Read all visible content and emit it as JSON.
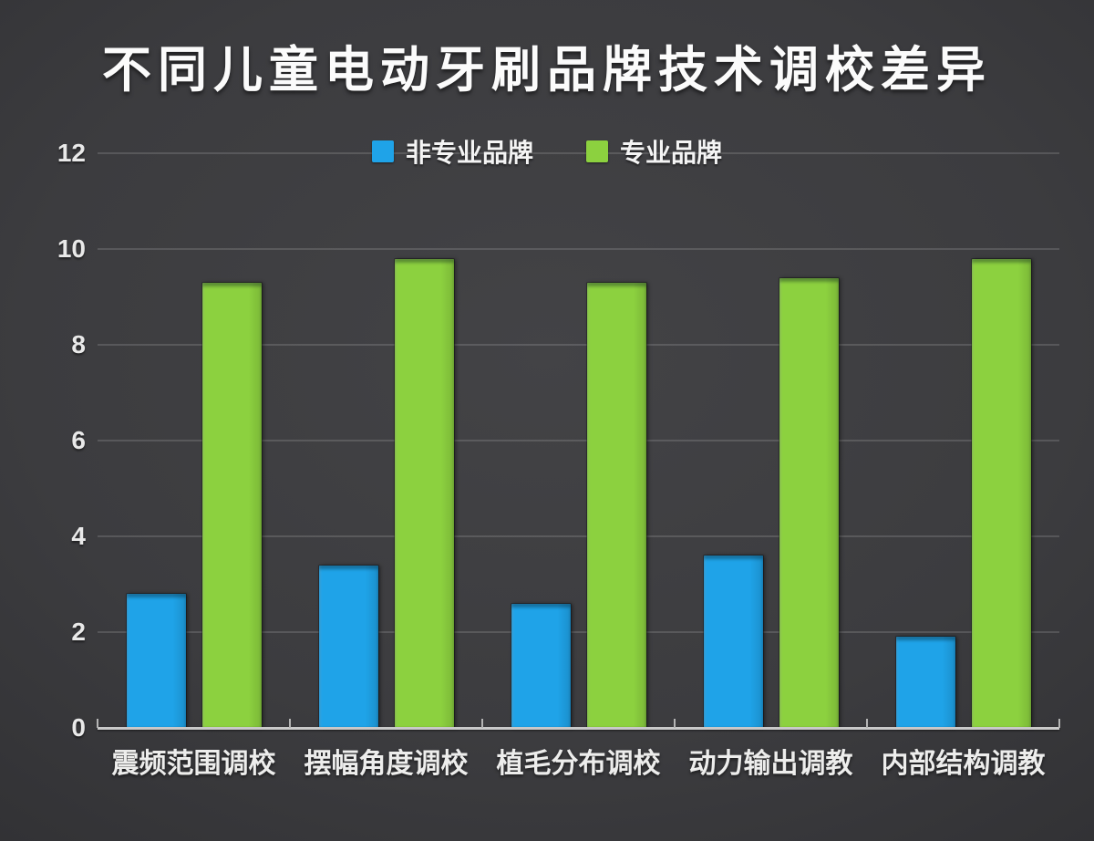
{
  "chart_data": {
    "type": "bar",
    "title": "不同儿童电动牙刷品牌技术调校差异",
    "categories": [
      "震频范围调校",
      "摆幅角度调校",
      "植毛分布调校",
      "动力输出调教",
      "内部结构调教"
    ],
    "series": [
      {
        "name": "非专业品牌",
        "color": "#1FA3E8",
        "values": [
          2.8,
          3.4,
          2.6,
          3.6,
          1.9
        ]
      },
      {
        "name": "专业品牌",
        "color": "#8CD13F",
        "values": [
          9.3,
          9.8,
          9.3,
          9.4,
          9.8
        ]
      }
    ],
    "xlabel": "",
    "ylabel": "",
    "ylim": [
      0,
      12
    ],
    "yticks": [
      0,
      2,
      4,
      6,
      8,
      10,
      12
    ],
    "grid": true,
    "legend_position": "top-center",
    "background_color": "#39393c",
    "text_color": "#f4f4f4",
    "gridline_color": "#5c5c5f",
    "axis_color": "#c9c9c9"
  }
}
